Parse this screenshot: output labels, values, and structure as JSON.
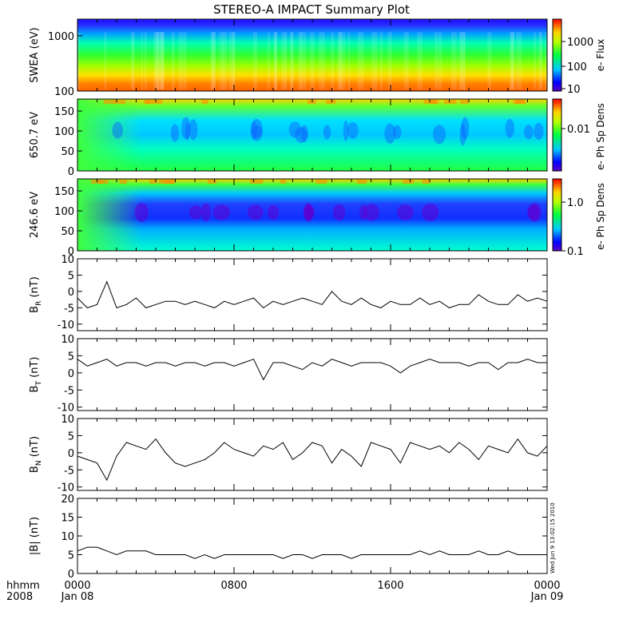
{
  "chart_data": {
    "type": "line",
    "title": "STEREO-A IMPACT Summary Plot",
    "time_axis": {
      "label_line1": "hhmm",
      "label_line2": "2008",
      "ticks": [
        {
          "time": "0000",
          "date": "Jan 08"
        },
        {
          "time": "0800",
          "date": ""
        },
        {
          "time": "1600",
          "date": ""
        },
        {
          "time": "0000",
          "date": "Jan 09"
        }
      ],
      "range_hours": [
        0,
        24
      ]
    },
    "spectrograms": [
      {
        "ylabel": "SWEA (eV)",
        "yscale": "log",
        "ylim": [
          100,
          2000
        ],
        "yticks": [
          "100",
          "1000"
        ],
        "colorbar_label": "e- Flux",
        "colorbar_ticks": [
          "10",
          "100",
          "1000"
        ]
      },
      {
        "ylabel": "650.7 eV",
        "yscale": "linear",
        "ylim": [
          0,
          180
        ],
        "yticks": [
          "0",
          "50",
          "100",
          "150"
        ],
        "colorbar_label": "e- Ph Sp Dens",
        "colorbar_ticks": [
          "0.01"
        ]
      },
      {
        "ylabel": "246.6 eV",
        "yscale": "linear",
        "ylim": [
          0,
          180
        ],
        "yticks": [
          "0",
          "50",
          "100",
          "150"
        ],
        "colorbar_label": "e- Ph Sp Dens",
        "colorbar_ticks": [
          "0.1",
          "1.0"
        ]
      }
    ],
    "line_panels": [
      {
        "ylabel": "B",
        "ysub": "R",
        "yunit": "(nT)",
        "ylim": [
          -12,
          10
        ],
        "yticks": [
          "-10",
          "-5",
          "0",
          "5",
          "10"
        ],
        "x_hours": [
          0,
          0.5,
          1,
          1.5,
          2,
          2.5,
          3,
          3.5,
          4,
          4.5,
          5,
          5.5,
          6,
          6.5,
          7,
          7.5,
          8,
          8.5,
          9,
          9.5,
          10,
          10.5,
          11,
          11.5,
          12,
          12.5,
          13,
          13.5,
          14,
          14.5,
          15,
          15.5,
          16,
          16.5,
          17,
          17.5,
          18,
          18.5,
          19,
          19.5,
          20,
          20.5,
          21,
          21.5,
          22,
          22.5,
          23,
          23.5,
          24
        ],
        "values": [
          -2,
          -5,
          -4,
          3,
          -5,
          -4,
          -2,
          -5,
          -4,
          -3,
          -3,
          -4,
          -3,
          -4,
          -5,
          -3,
          -4,
          -3,
          -2,
          -5,
          -3,
          -4,
          -3,
          -2,
          -3,
          -4,
          0,
          -3,
          -4,
          -2,
          -4,
          -5,
          -3,
          -4,
          -4,
          -2,
          -4,
          -3,
          -5,
          -4,
          -4,
          -1,
          -3,
          -4,
          -4,
          -1,
          -3,
          -2,
          -3
        ]
      },
      {
        "ylabel": "B",
        "ysub": "T",
        "yunit": "(nT)",
        "ylim": [
          -11,
          10
        ],
        "yticks": [
          "-10",
          "-5",
          "0",
          "5",
          "10"
        ],
        "x_hours": [
          0,
          0.5,
          1,
          1.5,
          2,
          2.5,
          3,
          3.5,
          4,
          4.5,
          5,
          5.5,
          6,
          6.5,
          7,
          7.5,
          8,
          8.5,
          9,
          9.5,
          10,
          10.5,
          11,
          11.5,
          12,
          12.5,
          13,
          13.5,
          14,
          14.5,
          15,
          15.5,
          16,
          16.5,
          17,
          17.5,
          18,
          18.5,
          19,
          19.5,
          20,
          20.5,
          21,
          21.5,
          22,
          22.5,
          23,
          23.5,
          24
        ],
        "values": [
          4,
          2,
          3,
          4,
          2,
          3,
          3,
          2,
          3,
          3,
          2,
          3,
          3,
          2,
          3,
          3,
          2,
          3,
          4,
          -2,
          3,
          3,
          2,
          1,
          3,
          2,
          4,
          3,
          2,
          3,
          3,
          3,
          2,
          0,
          2,
          3,
          4,
          3,
          3,
          3,
          2,
          3,
          3,
          1,
          3,
          3,
          4,
          3,
          3
        ]
      },
      {
        "ylabel": "B",
        "ysub": "N",
        "yunit": "(nT)",
        "ylim": [
          -11,
          10
        ],
        "yticks": [
          "-10",
          "-5",
          "0",
          "5",
          "10"
        ],
        "x_hours": [
          0,
          0.5,
          1,
          1.5,
          2,
          2.5,
          3,
          3.5,
          4,
          4.5,
          5,
          5.5,
          6,
          6.5,
          7,
          7.5,
          8,
          8.5,
          9,
          9.5,
          10,
          10.5,
          11,
          11.5,
          12,
          12.5,
          13,
          13.5,
          14,
          14.5,
          15,
          15.5,
          16,
          16.5,
          17,
          17.5,
          18,
          18.5,
          19,
          19.5,
          20,
          20.5,
          21,
          21.5,
          22,
          22.5,
          23,
          23.5,
          24
        ],
        "values": [
          -1,
          -2,
          -3,
          -8,
          -1,
          3,
          2,
          1,
          4,
          0,
          -3,
          -4,
          -3,
          -2,
          0,
          3,
          1,
          0,
          -1,
          2,
          1,
          3,
          -2,
          0,
          3,
          2,
          -3,
          1,
          -1,
          -4,
          3,
          2,
          1,
          -3,
          3,
          2,
          1,
          2,
          0,
          3,
          1,
          -2,
          2,
          1,
          0,
          4,
          0,
          -1,
          2
        ]
      },
      {
        "ylabel": "|B|",
        "ysub": "",
        "yunit": "(nT)",
        "ylim": [
          0,
          20
        ],
        "yticks": [
          "0",
          "5",
          "10",
          "15",
          "20"
        ],
        "x_hours": [
          0,
          0.5,
          1,
          1.5,
          2,
          2.5,
          3,
          3.5,
          4,
          4.5,
          5,
          5.5,
          6,
          6.5,
          7,
          7.5,
          8,
          8.5,
          9,
          9.5,
          10,
          10.5,
          11,
          11.5,
          12,
          12.5,
          13,
          13.5,
          14,
          14.5,
          15,
          15.5,
          16,
          16.5,
          17,
          17.5,
          18,
          18.5,
          19,
          19.5,
          20,
          20.5,
          21,
          21.5,
          22,
          22.5,
          23,
          23.5,
          24
        ],
        "values": [
          6,
          7,
          7,
          6,
          5,
          6,
          6,
          6,
          5,
          5,
          5,
          5,
          4,
          5,
          4,
          5,
          5,
          5,
          5,
          5,
          5,
          4,
          5,
          5,
          4,
          5,
          5,
          5,
          4,
          5,
          5,
          5,
          5,
          5,
          5,
          6,
          5,
          6,
          5,
          5,
          5,
          6,
          5,
          5,
          6,
          5,
          5,
          5,
          5
        ]
      }
    ],
    "timestamp": "Wed Jun  9 13:02:15 2010"
  }
}
